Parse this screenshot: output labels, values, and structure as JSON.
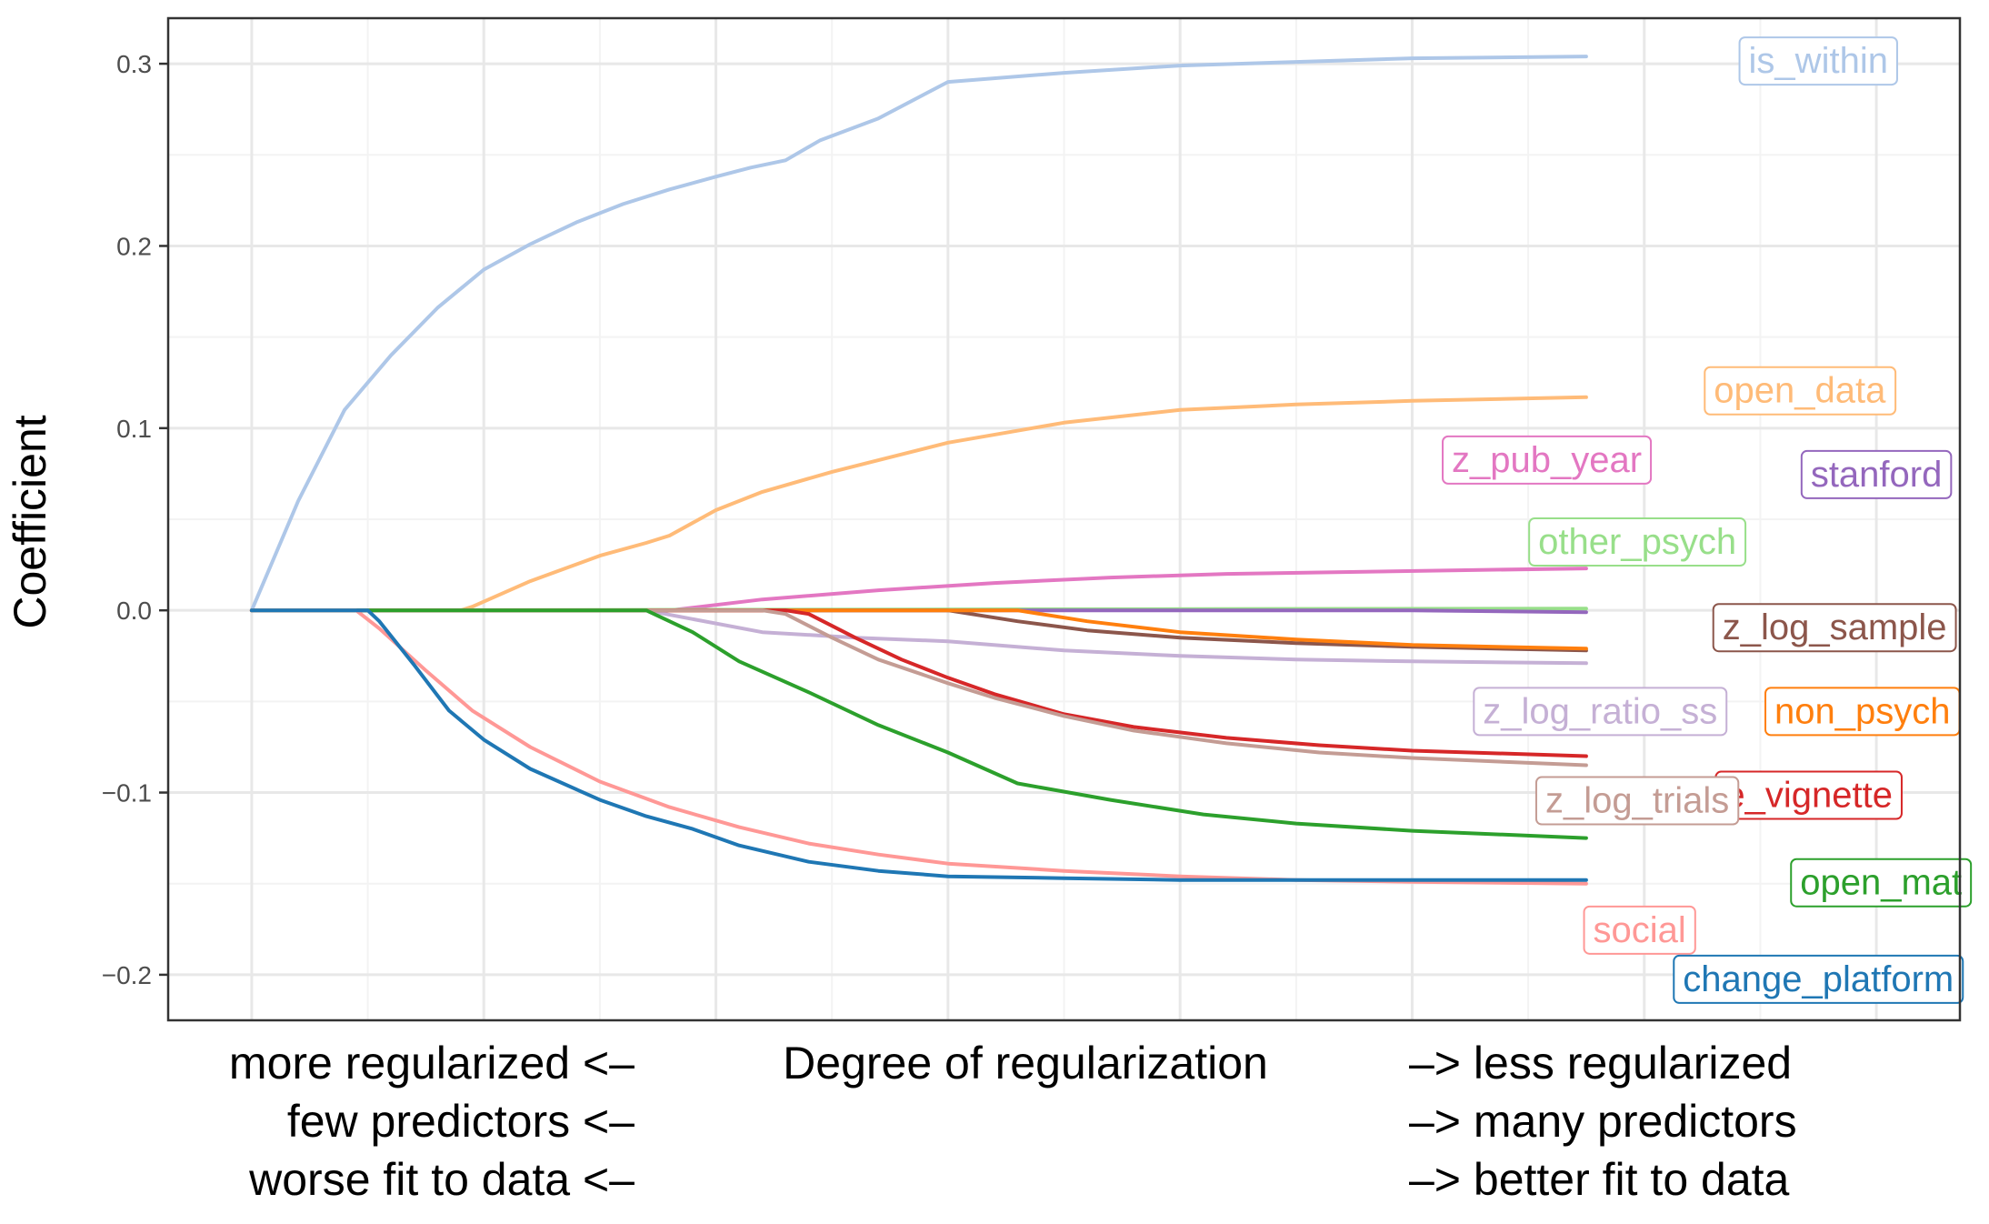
{
  "chart_data": {
    "type": "line",
    "title": "",
    "ylabel": "Coefficient",
    "xlabel": "Degree of regularization",
    "x_annotations": {
      "left": [
        "more regularized <–",
        "few predictors <–",
        "worse fit to data <–"
      ],
      "right": [
        "–> less regularized",
        "–> many predictors",
        "–> better fit to data"
      ]
    },
    "xlim": [
      -0.36,
      7.36
    ],
    "ylim": [
      -0.225,
      0.325
    ],
    "yticks": [
      -0.2,
      -0.1,
      0.0,
      0.1,
      0.2,
      0.3
    ],
    "ytick_labels": [
      "−0.2",
      "−0.1",
      "0.0",
      "0.1",
      "0.2",
      "0.3"
    ],
    "x_gridlines": [
      0,
      1,
      2,
      3,
      4,
      5,
      6,
      7
    ],
    "x_tick_labels_shown": false,
    "grid": true,
    "legend": "none",
    "series": [
      {
        "name": "is_within",
        "color": "#aec7e8",
        "points": [
          [
            0,
            0
          ],
          [
            0.2,
            0.06
          ],
          [
            0.4,
            0.11
          ],
          [
            0.6,
            0.14
          ],
          [
            0.8,
            0.166
          ],
          [
            1,
            0.187
          ],
          [
            1.2,
            0.201
          ],
          [
            1.4,
            0.213
          ],
          [
            1.6,
            0.223
          ],
          [
            1.8,
            0.231
          ],
          [
            2,
            0.238
          ],
          [
            2.15,
            0.243
          ],
          [
            2.3,
            0.247
          ],
          [
            2.45,
            0.258
          ],
          [
            2.7,
            0.27
          ],
          [
            3,
            0.29
          ],
          [
            3.5,
            0.295
          ],
          [
            4,
            0.299
          ],
          [
            4.5,
            0.301
          ],
          [
            5,
            0.303
          ],
          [
            5.75,
            0.304
          ]
        ]
      },
      {
        "name": "open_data",
        "color": "#ffbb78",
        "points": [
          [
            0,
            0
          ],
          [
            0.9,
            0
          ],
          [
            0.95,
            0.002
          ],
          [
            1.2,
            0.016
          ],
          [
            1.5,
            0.03
          ],
          [
            1.7,
            0.037
          ],
          [
            1.8,
            0.041
          ],
          [
            2,
            0.055
          ],
          [
            2.2,
            0.065
          ],
          [
            2.5,
            0.076
          ],
          [
            3,
            0.092
          ],
          [
            3.5,
            0.103
          ],
          [
            4,
            0.11
          ],
          [
            4.5,
            0.113
          ],
          [
            5,
            0.115
          ],
          [
            5.75,
            0.117
          ]
        ]
      },
      {
        "name": "z_pub_year",
        "color": "#e377c2",
        "points": [
          [
            0,
            0
          ],
          [
            1.8,
            0
          ],
          [
            2.2,
            0.006
          ],
          [
            2.7,
            0.011
          ],
          [
            3.2,
            0.015
          ],
          [
            3.7,
            0.018
          ],
          [
            4.2,
            0.02
          ],
          [
            4.7,
            0.021
          ],
          [
            5.2,
            0.022
          ],
          [
            5.75,
            0.023
          ]
        ]
      },
      {
        "name": "other_psych",
        "color": "#98df8a",
        "points": [
          [
            0,
            0
          ],
          [
            5.75,
            0.001
          ]
        ]
      },
      {
        "name": "stanford",
        "color": "#9467bd",
        "points": [
          [
            0,
            0
          ],
          [
            5,
            0
          ],
          [
            5.75,
            -0.001
          ]
        ]
      },
      {
        "name": "z_log_sample",
        "color": "#8c564b",
        "points": [
          [
            0,
            0
          ],
          [
            3,
            0
          ],
          [
            3.3,
            -0.006
          ],
          [
            3.6,
            -0.011
          ],
          [
            4,
            -0.015
          ],
          [
            4.5,
            -0.018
          ],
          [
            5,
            -0.02
          ],
          [
            5.75,
            -0.022
          ]
        ]
      },
      {
        "name": "non_psych",
        "color": "#ff7f0e",
        "points": [
          [
            0,
            0
          ],
          [
            3.3,
            0
          ],
          [
            3.6,
            -0.006
          ],
          [
            4,
            -0.012
          ],
          [
            4.5,
            -0.016
          ],
          [
            5,
            -0.019
          ],
          [
            5.75,
            -0.021
          ]
        ]
      },
      {
        "name": "z_log_ratio_ss",
        "color": "#c5b0d5",
        "points": [
          [
            0,
            0
          ],
          [
            1.7,
            0
          ],
          [
            2.2,
            -0.012
          ],
          [
            2.6,
            -0.015
          ],
          [
            3,
            -0.017
          ],
          [
            3.5,
            -0.022
          ],
          [
            4,
            -0.025
          ],
          [
            4.5,
            -0.027
          ],
          [
            5,
            -0.028
          ],
          [
            5.75,
            -0.029
          ]
        ]
      },
      {
        "name": "e_vignette",
        "color": "#d62728",
        "points": [
          [
            0,
            0
          ],
          [
            2.3,
            0
          ],
          [
            2.4,
            -0.002
          ],
          [
            2.6,
            -0.015
          ],
          [
            2.8,
            -0.027
          ],
          [
            3,
            -0.037
          ],
          [
            3.2,
            -0.046
          ],
          [
            3.5,
            -0.057
          ],
          [
            3.8,
            -0.064
          ],
          [
            4.2,
            -0.07
          ],
          [
            4.6,
            -0.074
          ],
          [
            5,
            -0.077
          ],
          [
            5.75,
            -0.08
          ]
        ]
      },
      {
        "name": "z_log_trials",
        "color": "#c49c94",
        "points": [
          [
            0,
            0
          ],
          [
            2.2,
            0
          ],
          [
            2.3,
            -0.002
          ],
          [
            2.5,
            -0.015
          ],
          [
            2.7,
            -0.027
          ],
          [
            3,
            -0.04
          ],
          [
            3.2,
            -0.048
          ],
          [
            3.5,
            -0.058
          ],
          [
            3.8,
            -0.066
          ],
          [
            4.2,
            -0.073
          ],
          [
            4.6,
            -0.078
          ],
          [
            5,
            -0.081
          ],
          [
            5.75,
            -0.085
          ]
        ]
      },
      {
        "name": "open_mat",
        "color": "#2ca02c",
        "points": [
          [
            0,
            0
          ],
          [
            1.7,
            0
          ],
          [
            1.9,
            -0.012
          ],
          [
            2.1,
            -0.028
          ],
          [
            2.4,
            -0.045
          ],
          [
            2.7,
            -0.063
          ],
          [
            3,
            -0.078
          ],
          [
            3.3,
            -0.095
          ],
          [
            3.7,
            -0.104
          ],
          [
            4.1,
            -0.112
          ],
          [
            4.5,
            -0.117
          ],
          [
            5,
            -0.121
          ],
          [
            5.75,
            -0.125
          ]
        ]
      },
      {
        "name": "social",
        "color": "#ff9896",
        "points": [
          [
            0,
            0
          ],
          [
            0.45,
            0
          ],
          [
            0.55,
            -0.01
          ],
          [
            0.75,
            -0.033
          ],
          [
            0.95,
            -0.055
          ],
          [
            1.2,
            -0.075
          ],
          [
            1.5,
            -0.094
          ],
          [
            1.8,
            -0.108
          ],
          [
            2.1,
            -0.119
          ],
          [
            2.4,
            -0.128
          ],
          [
            2.7,
            -0.134
          ],
          [
            3,
            -0.139
          ],
          [
            3.5,
            -0.143
          ],
          [
            4,
            -0.146
          ],
          [
            4.5,
            -0.148
          ],
          [
            5,
            -0.149
          ],
          [
            5.75,
            -0.15
          ]
        ]
      },
      {
        "name": "change_platform",
        "color": "#1f77b4",
        "points": [
          [
            0,
            0
          ],
          [
            0.5,
            0
          ],
          [
            0.55,
            -0.006
          ],
          [
            0.7,
            -0.03
          ],
          [
            0.85,
            -0.055
          ],
          [
            1,
            -0.071
          ],
          [
            1.2,
            -0.087
          ],
          [
            1.5,
            -0.104
          ],
          [
            1.7,
            -0.113
          ],
          [
            1.9,
            -0.12
          ],
          [
            2.1,
            -0.129
          ],
          [
            2.4,
            -0.138
          ],
          [
            2.7,
            -0.143
          ],
          [
            3,
            -0.146
          ],
          [
            3.5,
            -0.147
          ],
          [
            4,
            -0.148
          ],
          [
            5,
            -0.148
          ],
          [
            5.75,
            -0.148
          ]
        ]
      }
    ],
    "labels": [
      {
        "text": "is_within",
        "color": "#aec7e8",
        "x": 6.75,
        "y": 0.302,
        "align": "middle"
      },
      {
        "text": "open_data",
        "color": "#ffbb78",
        "x": 6.67,
        "y": 0.121,
        "align": "middle"
      },
      {
        "text": "z_pub_year",
        "color": "#e377c2",
        "x": 5.58,
        "y": 0.083,
        "align": "middle"
      },
      {
        "text": "stanford",
        "color": "#9467bd",
        "x": 7.0,
        "y": 0.075,
        "align": "middle"
      },
      {
        "text": "other_psych",
        "color": "#98df8a",
        "x": 5.97,
        "y": 0.038,
        "align": "middle"
      },
      {
        "text": "z_log_sample",
        "color": "#8c564b",
        "x": 6.82,
        "y": -0.009,
        "align": "middle"
      },
      {
        "text": "z_log_ratio_ss",
        "color": "#c5b0d5",
        "x": 5.81,
        "y": -0.055,
        "align": "middle"
      },
      {
        "text": "non_psych",
        "color": "#ff7f0e",
        "x": 6.94,
        "y": -0.055,
        "align": "middle"
      },
      {
        "text": "e_vignette",
        "color": "#d62728",
        "x": 7.07,
        "y": -0.101,
        "align": "end"
      },
      {
        "text": "z_log_trials",
        "color": "#c49c94",
        "x": 5.97,
        "y": -0.104,
        "align": "middle"
      },
      {
        "text": "open_mat",
        "color": "#2ca02c",
        "x": 7.02,
        "y": -0.149,
        "align": "middle"
      },
      {
        "text": "social",
        "color": "#ff9896",
        "x": 5.98,
        "y": -0.175,
        "align": "middle"
      },
      {
        "text": "change_platform",
        "color": "#1f77b4",
        "x": 6.75,
        "y": -0.202,
        "align": "middle"
      }
    ]
  }
}
